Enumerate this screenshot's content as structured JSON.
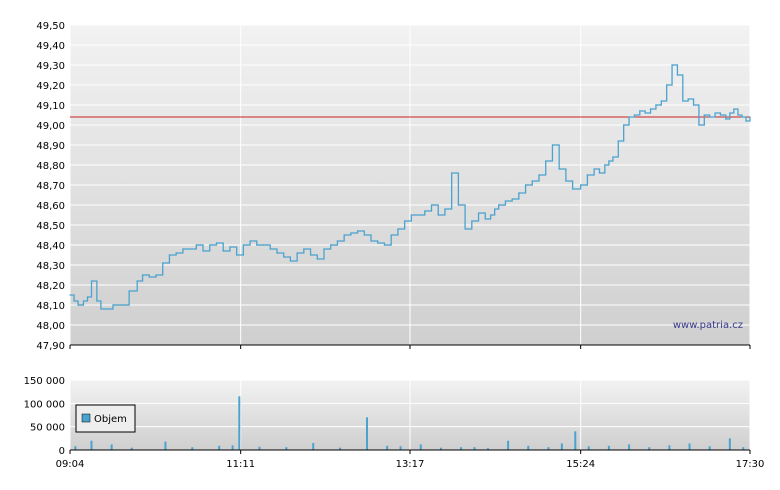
{
  "watermark": "www.patria.cz",
  "colors": {
    "price_line": "#4aa3cf",
    "reference_line": "#cc2222",
    "volume_bars": "#4aa3cf",
    "grid": "#ffffff"
  },
  "chart_data": [
    {
      "type": "line",
      "title": "",
      "xlabel": "",
      "ylabel": "",
      "ylim": [
        47.9,
        49.5
      ],
      "y_ticks": [
        "49,50",
        "49,40",
        "49,30",
        "49,20",
        "49,10",
        "49,00",
        "48,90",
        "48,80",
        "48,70",
        "48,60",
        "48,50",
        "48,40",
        "48,30",
        "48,20",
        "48,10",
        "48,00",
        "47,90"
      ],
      "x_ticks": [
        "09:04",
        "11:11",
        "13:17",
        "15:24",
        "17:30"
      ],
      "reference_line": 49.04,
      "grid": true,
      "series": [
        {
          "x": [
            "09:04",
            "09:07",
            "09:10",
            "09:14",
            "09:17",
            "09:20",
            "09:24",
            "09:27",
            "09:30",
            "09:36",
            "09:42",
            "09:48",
            "09:54",
            "09:58",
            "10:03",
            "10:08",
            "10:13",
            "10:18",
            "10:23",
            "10:28",
            "10:33",
            "10:38",
            "10:43",
            "10:48",
            "10:53",
            "10:58",
            "11:03",
            "11:08",
            "11:13",
            "11:18",
            "11:23",
            "11:28",
            "11:33",
            "11:38",
            "11:43",
            "11:48",
            "11:53",
            "11:58",
            "12:03",
            "12:08",
            "12:13",
            "12:18",
            "12:23",
            "12:28",
            "12:33",
            "12:38",
            "12:43",
            "12:48",
            "12:53",
            "12:58",
            "13:03",
            "13:08",
            "13:13",
            "13:18",
            "13:23",
            "13:28",
            "13:33",
            "13:38",
            "13:43",
            "13:48",
            "13:53",
            "13:58",
            "14:03",
            "14:08",
            "14:13",
            "14:17",
            "14:20",
            "14:23",
            "14:28",
            "14:33",
            "14:38",
            "14:43",
            "14:48",
            "14:53",
            "14:58",
            "15:03",
            "15:08",
            "15:13",
            "15:18",
            "15:24",
            "15:29",
            "15:34",
            "15:38",
            "15:42",
            "15:45",
            "15:48",
            "15:52",
            "15:56",
            "16:00",
            "16:04",
            "16:08",
            "16:12",
            "16:16",
            "16:20",
            "16:24",
            "16:28",
            "16:32",
            "16:36",
            "16:40",
            "16:44",
            "16:48",
            "16:52",
            "16:56",
            "17:00",
            "17:04",
            "17:08",
            "17:12",
            "17:15",
            "17:18",
            "17:21",
            "17:24",
            "17:27",
            "17:30"
          ],
          "values": [
            48.15,
            48.12,
            48.1,
            48.12,
            48.14,
            48.22,
            48.12,
            48.08,
            48.08,
            48.1,
            48.1,
            48.17,
            48.22,
            48.25,
            48.24,
            48.25,
            48.31,
            48.35,
            48.36,
            48.38,
            48.38,
            48.4,
            48.37,
            48.4,
            48.41,
            48.37,
            48.39,
            48.35,
            48.4,
            48.42,
            48.4,
            48.4,
            48.38,
            48.36,
            48.34,
            48.32,
            48.36,
            48.38,
            48.35,
            48.33,
            48.38,
            48.4,
            48.42,
            48.45,
            48.46,
            48.47,
            48.45,
            48.42,
            48.41,
            48.4,
            48.45,
            48.48,
            48.52,
            48.55,
            48.55,
            48.57,
            48.6,
            48.55,
            48.58,
            48.76,
            48.6,
            48.48,
            48.52,
            48.56,
            48.53,
            48.55,
            48.58,
            48.6,
            48.62,
            48.63,
            48.66,
            48.7,
            48.72,
            48.75,
            48.82,
            48.9,
            48.78,
            48.72,
            48.68,
            48.7,
            48.75,
            48.78,
            48.76,
            48.8,
            48.82,
            48.84,
            48.92,
            49.0,
            49.04,
            49.05,
            49.07,
            49.06,
            49.08,
            49.1,
            49.12,
            49.2,
            49.3,
            49.25,
            49.12,
            49.13,
            49.1,
            49.0,
            49.05,
            49.04,
            49.06,
            49.05,
            49.03,
            49.06,
            49.08,
            49.05,
            49.04,
            49.02,
            49.04
          ]
        }
      ]
    },
    {
      "type": "bar",
      "title": "",
      "ylim": [
        0,
        150000
      ],
      "y_ticks": [
        "150 000",
        "100 000",
        "50 000",
        "0"
      ],
      "x_ticks": [
        "09:04",
        "11:11",
        "13:17",
        "15:24",
        "17:30"
      ],
      "legend": {
        "position": "top-left",
        "label": "Objem"
      },
      "grid": true,
      "series": [
        {
          "name": "Objem",
          "x": [
            "09:08",
            "09:20",
            "09:35",
            "09:50",
            "10:15",
            "10:35",
            "10:55",
            "11:05",
            "11:10",
            "11:25",
            "11:45",
            "12:05",
            "12:25",
            "12:45",
            "13:00",
            "13:10",
            "13:25",
            "13:40",
            "13:55",
            "14:05",
            "14:15",
            "14:30",
            "14:45",
            "15:00",
            "15:10",
            "15:20",
            "15:30",
            "15:45",
            "16:00",
            "16:15",
            "16:30",
            "16:45",
            "17:00",
            "17:15",
            "17:25"
          ],
          "values": [
            8000,
            20000,
            12000,
            5000,
            18000,
            6000,
            9000,
            10000,
            115000,
            7000,
            6000,
            15000,
            5000,
            70000,
            9000,
            8000,
            12000,
            5000,
            6000,
            6000,
            4000,
            20000,
            9000,
            6000,
            14000,
            40000,
            8000,
            9000,
            12000,
            6000,
            10000,
            14000,
            8000,
            25000,
            6000
          ]
        }
      ]
    }
  ]
}
